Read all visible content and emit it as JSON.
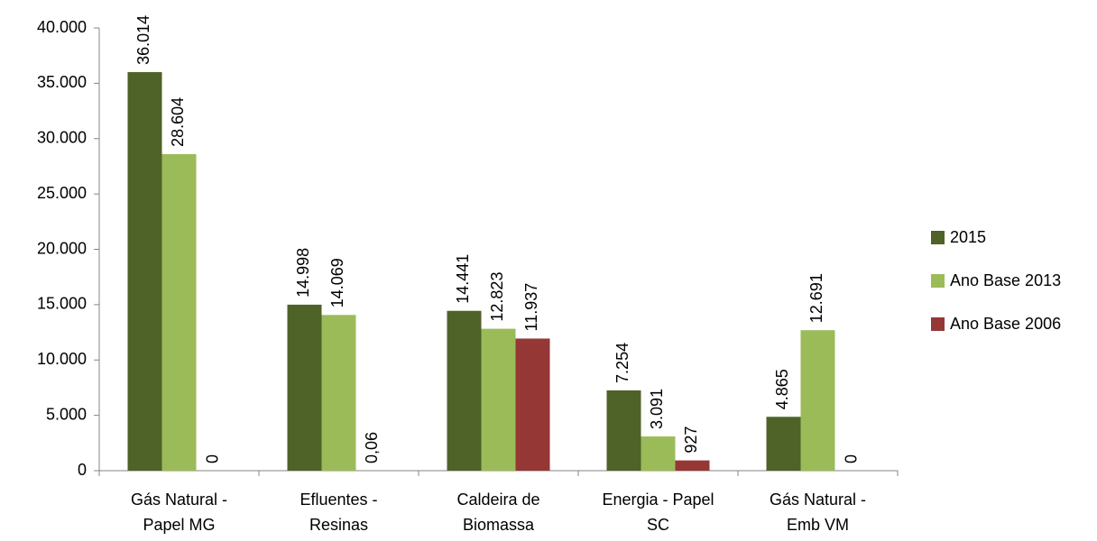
{
  "chart_data": {
    "type": "bar",
    "categories": [
      [
        "Gás Natural -",
        "Papel MG"
      ],
      [
        "Efluentes -",
        "Resinas"
      ],
      [
        "Caldeira de",
        "Biomassa"
      ],
      [
        "Energia - Papel",
        "SC"
      ],
      [
        "Gás Natural -",
        "Emb  VM"
      ]
    ],
    "series": [
      {
        "name": "2015",
        "color": "#4f6228",
        "values": [
          36014,
          14998,
          14441,
          7254,
          4865
        ],
        "value_labels": [
          "36.014",
          "14.998",
          "14.441",
          "7.254",
          "4.865"
        ]
      },
      {
        "name": "Ano Base 2013",
        "color": "#9bbb59",
        "values": [
          28604,
          14069,
          12823,
          3091,
          12691
        ],
        "value_labels": [
          "28.604",
          "14.069",
          "12.823",
          "3.091",
          "12.691"
        ]
      },
      {
        "name": "Ano Base 2006",
        "color": "#953735",
        "values": [
          0,
          0.06,
          11937,
          927,
          0
        ],
        "value_labels": [
          "0",
          "0,06",
          "11.937",
          "927",
          "0"
        ]
      }
    ],
    "ylim": [
      0,
      40000
    ],
    "yticks": [
      0,
      {
        "value": 5000,
        "label": "5.000"
      },
      {
        "value": 10000,
        "label": "10.000"
      },
      {
        "value": 15000,
        "label": "15.000"
      },
      {
        "value": 20000,
        "label": "20.000"
      },
      {
        "value": 25000,
        "label": "25.000"
      },
      {
        "value": 30000,
        "label": "30.000"
      },
      {
        "value": 35000,
        "label": "35.000"
      },
      {
        "value": 40000,
        "label": "40.000"
      }
    ],
    "legend": "right"
  }
}
